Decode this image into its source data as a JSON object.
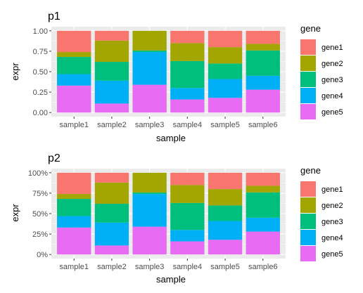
{
  "chart_data": [
    {
      "type": "bar",
      "stacked": true,
      "title": "p1",
      "xlabel": "sample",
      "ylabel": "expr",
      "ylim": [
        0,
        1
      ],
      "yticks": [
        0,
        0.25,
        0.5,
        0.75,
        1
      ],
      "ytick_labels": [
        "0.00",
        "0.25",
        "0.50",
        "0.75",
        "1.00"
      ],
      "categories": [
        "sample1",
        "sample2",
        "sample3",
        "sample4",
        "sample5",
        "sample6"
      ],
      "legend_title": "gene",
      "legend_position": "right",
      "series": [
        {
          "name": "gene1",
          "color": "#F8766D",
          "values": [
            0.26,
            0.12,
            0.0,
            0.15,
            0.2,
            0.16
          ]
        },
        {
          "name": "gene2",
          "color": "#A3A500",
          "values": [
            0.06,
            0.26,
            0.24,
            0.22,
            0.2,
            0.08
          ]
        },
        {
          "name": "gene3",
          "color": "#00BF7D",
          "values": [
            0.21,
            0.23,
            0.02,
            0.33,
            0.19,
            0.31
          ]
        },
        {
          "name": "gene4",
          "color": "#00B0F6",
          "values": [
            0.14,
            0.28,
            0.4,
            0.14,
            0.23,
            0.17
          ]
        },
        {
          "name": "gene5",
          "color": "#E76BF3",
          "values": [
            0.33,
            0.11,
            0.34,
            0.16,
            0.18,
            0.28
          ]
        }
      ]
    },
    {
      "type": "bar",
      "stacked": true,
      "title": "p2",
      "xlabel": "sample",
      "ylabel": "expr",
      "ylim": [
        0,
        1
      ],
      "yticks": [
        0,
        0.25,
        0.5,
        0.75,
        1
      ],
      "ytick_labels": [
        "0%",
        "25%",
        "50%",
        "75%",
        "100%"
      ],
      "categories": [
        "sample1",
        "sample2",
        "sample3",
        "sample4",
        "sample5",
        "sample6"
      ],
      "legend_title": "gene",
      "legend_position": "right",
      "series": [
        {
          "name": "gene1",
          "color": "#F8766D",
          "values": [
            0.26,
            0.12,
            0.0,
            0.15,
            0.2,
            0.16
          ]
        },
        {
          "name": "gene2",
          "color": "#A3A500",
          "values": [
            0.06,
            0.26,
            0.24,
            0.22,
            0.2,
            0.08
          ]
        },
        {
          "name": "gene3",
          "color": "#00BF7D",
          "values": [
            0.21,
            0.23,
            0.02,
            0.33,
            0.19,
            0.31
          ]
        },
        {
          "name": "gene4",
          "color": "#00B0F6",
          "values": [
            0.14,
            0.28,
            0.4,
            0.14,
            0.23,
            0.17
          ]
        },
        {
          "name": "gene5",
          "color": "#E76BF3",
          "values": [
            0.33,
            0.11,
            0.34,
            0.16,
            0.18,
            0.28
          ]
        }
      ]
    }
  ]
}
